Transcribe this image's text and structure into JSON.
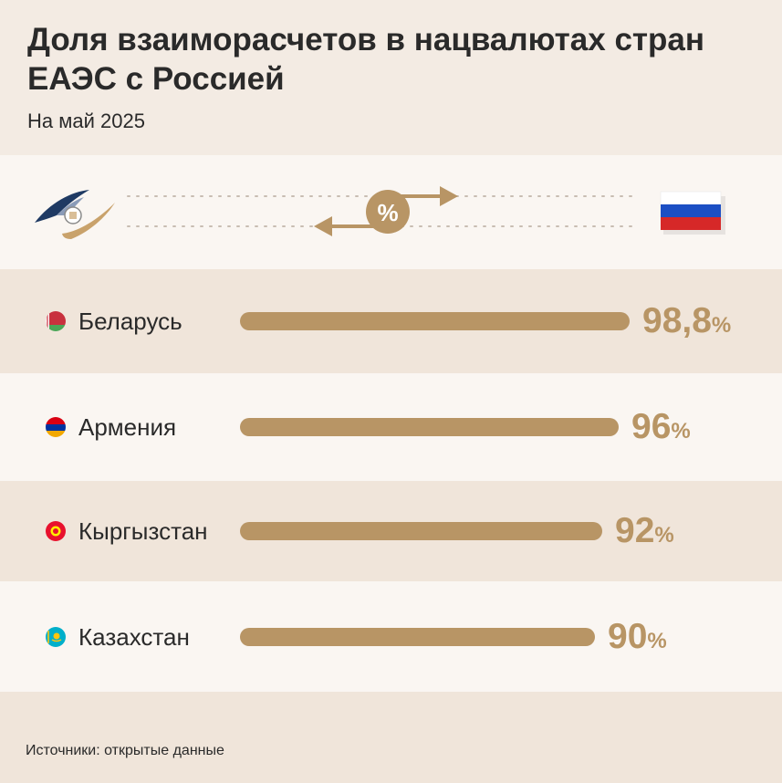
{
  "title": "Доля взаиморасчетов в нацвалютах стран ЕАЭС с Россией",
  "subtitle": "На май 2025",
  "exchange": {
    "left_logo": "eaeu-logo-icon",
    "center_symbol": "%",
    "right_flag": "russia-flag-icon"
  },
  "chart_data": {
    "type": "bar",
    "orientation": "horizontal",
    "title": "Доля взаиморасчетов в нацвалютах стран ЕАЭС с Россией",
    "subtitle": "На май 2025",
    "categories": [
      "Беларусь",
      "Армения",
      "Кыргызстан",
      "Казахстан"
    ],
    "values": [
      98.8,
      96,
      92,
      90
    ],
    "value_labels": [
      "98,8",
      "96",
      "92",
      "90"
    ],
    "unit": "%",
    "bar_color": "#b89565",
    "xlim": [
      0,
      100
    ]
  },
  "rows": [
    {
      "country": "Беларусь",
      "flag_icon": "belarus-flag-icon",
      "label": "98,8",
      "unit": "%"
    },
    {
      "country": "Армения",
      "flag_icon": "armenia-flag-icon",
      "label": "96",
      "unit": "%"
    },
    {
      "country": "Кыргызстан",
      "flag_icon": "kyrgyzstan-flag-icon",
      "label": "92",
      "unit": "%"
    },
    {
      "country": "Казахстан",
      "flag_icon": "kazakhstan-flag-icon",
      "label": "90",
      "unit": "%"
    }
  ],
  "source": "Источники: открытые данные",
  "colors": {
    "accent": "#b89565",
    "bg_dark": "#f0e5da",
    "bg_light": "#faf6f2",
    "text": "#2a2a2a"
  }
}
